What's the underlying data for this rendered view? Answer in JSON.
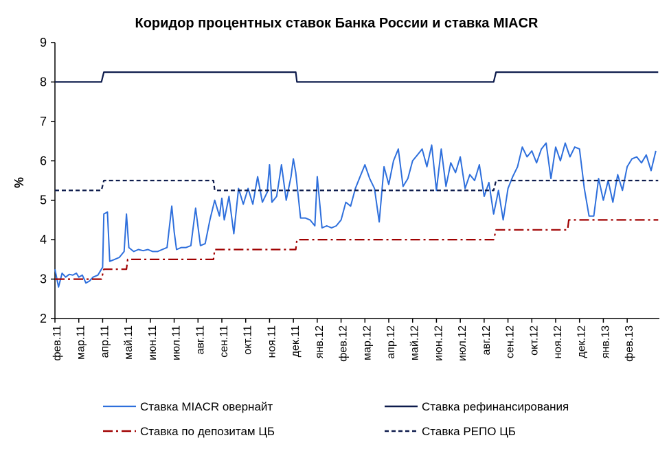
{
  "chart_data": {
    "type": "line",
    "title": "Коридор процентных ставок Банка России и ставка MIACR",
    "xlabel": "",
    "ylabel": "%",
    "ylim": [
      2,
      9
    ],
    "yticks": [
      "2",
      "3",
      "4",
      "5",
      "6",
      "7",
      "8",
      "9"
    ],
    "categories": [
      "фев.11",
      "мар.11",
      "апр.11",
      "май.11",
      "июн.11",
      "июл.11",
      "авг.11",
      "сен.11",
      "окт.11",
      "ноя.11",
      "дек.11",
      "янв.12",
      "фев.12",
      "мар.12",
      "апр.12",
      "май.12",
      "июн.12",
      "июл.12",
      "авг.12",
      "сен.12",
      "окт.12",
      "ноя.12",
      "дек.12",
      "янв.13",
      "фев.13"
    ],
    "grid": false,
    "legend_position": "bottom",
    "colors": {
      "miacr": "#2e6fdc",
      "refinancing": "#0d1b4c",
      "deposit": "#a00000",
      "repo": "#0d1b4c"
    },
    "series": [
      {
        "name": "Ставка MIACR овернайт",
        "key": "miacr",
        "style": "solid",
        "x": [
          0,
          0.15,
          0.3,
          0.45,
          0.6,
          0.75,
          0.9,
          1.0,
          1.15,
          1.3,
          1.45,
          1.6,
          1.8,
          2.0,
          2.05,
          2.2,
          2.3,
          2.5,
          2.7,
          2.9,
          3.0,
          3.1,
          3.3,
          3.5,
          3.7,
          3.9,
          4.1,
          4.3,
          4.5,
          4.7,
          4.9,
          5.0,
          5.1,
          5.3,
          5.5,
          5.7,
          5.9,
          6.1,
          6.3,
          6.5,
          6.7,
          6.9,
          7.0,
          7.1,
          7.3,
          7.5,
          7.7,
          7.9,
          8.1,
          8.3,
          8.5,
          8.7,
          8.9,
          9.0,
          9.1,
          9.3,
          9.5,
          9.7,
          9.9,
          10.0,
          10.1,
          10.3,
          10.5,
          10.7,
          10.9,
          11.0,
          11.2,
          11.4,
          11.6,
          11.8,
          12.0,
          12.2,
          12.4,
          12.6,
          12.8,
          13.0,
          13.2,
          13.4,
          13.6,
          13.8,
          14.0,
          14.2,
          14.4,
          14.6,
          14.8,
          15.0,
          15.2,
          15.4,
          15.6,
          15.8,
          16.0,
          16.2,
          16.4,
          16.6,
          16.8,
          17.0,
          17.2,
          17.4,
          17.6,
          17.8,
          18.0,
          18.2,
          18.4,
          18.6,
          18.8,
          19.0,
          19.2,
          19.4,
          19.6,
          19.8,
          20.0,
          20.2,
          20.4,
          20.6,
          20.8,
          21.0,
          21.2,
          21.4,
          21.6,
          21.8,
          22.0,
          22.2,
          22.4,
          22.6,
          22.8,
          23.0,
          23.2,
          23.4,
          23.6,
          23.8,
          24.0,
          24.2,
          24.4,
          24.6,
          24.8,
          25.0,
          25.2
        ],
        "values": [
          3.25,
          2.8,
          3.15,
          3.05,
          3.12,
          3.1,
          3.15,
          3.05,
          3.1,
          2.9,
          2.95,
          3.05,
          3.1,
          3.3,
          4.65,
          4.7,
          3.45,
          3.5,
          3.55,
          3.7,
          4.65,
          3.8,
          3.7,
          3.75,
          3.72,
          3.75,
          3.7,
          3.7,
          3.75,
          3.8,
          4.85,
          4.2,
          3.75,
          3.8,
          3.8,
          3.85,
          4.8,
          3.85,
          3.9,
          4.5,
          5.0,
          4.6,
          5.05,
          4.5,
          5.1,
          4.15,
          5.3,
          4.9,
          5.3,
          4.9,
          5.6,
          4.95,
          5.2,
          5.9,
          4.95,
          5.1,
          5.9,
          5.0,
          5.6,
          6.05,
          5.7,
          4.55,
          4.55,
          4.5,
          4.35,
          5.6,
          4.3,
          4.35,
          4.3,
          4.35,
          4.5,
          4.95,
          4.85,
          5.3,
          5.6,
          5.9,
          5.55,
          5.3,
          4.45,
          5.85,
          5.4,
          6.0,
          6.3,
          5.35,
          5.55,
          6.0,
          6.15,
          6.3,
          5.85,
          6.4,
          5.25,
          6.3,
          5.35,
          5.95,
          5.7,
          6.1,
          5.3,
          5.65,
          5.5,
          5.9,
          5.1,
          5.45,
          4.65,
          5.25,
          4.5,
          5.3,
          5.6,
          5.85,
          6.35,
          6.1,
          6.25,
          5.95,
          6.3,
          6.45,
          5.55,
          6.35,
          6.0,
          6.45,
          6.1,
          6.35,
          6.3,
          5.3,
          4.6,
          4.6,
          5.55,
          5.0,
          5.5,
          4.95,
          5.65,
          5.25,
          5.85,
          6.05,
          6.1,
          5.95,
          6.15,
          5.75,
          6.25
        ]
      },
      {
        "name": "Ставка рефинансирования",
        "key": "refinancing",
        "style": "solid",
        "x": [
          0,
          1.95,
          2.05,
          10.1,
          10.15,
          18.4,
          18.5,
          25.3
        ],
        "values": [
          8.0,
          8.0,
          8.25,
          8.25,
          8.0,
          8.0,
          8.25,
          8.25
        ]
      },
      {
        "name": "Ставка по депозитам ЦБ",
        "key": "deposit",
        "style": "dash-dot",
        "x": [
          0,
          1.95,
          2.05,
          3.0,
          3.05,
          6.65,
          6.7,
          10.1,
          10.15,
          18.4,
          18.5,
          21.5,
          21.55,
          25.3
        ],
        "values": [
          3.0,
          3.0,
          3.25,
          3.25,
          3.5,
          3.5,
          3.75,
          3.75,
          4.0,
          4.0,
          4.25,
          4.25,
          4.5,
          4.5
        ]
      },
      {
        "name": "Ставка РЕПО ЦБ",
        "key": "repo",
        "style": "dashed",
        "x": [
          0,
          1.95,
          2.05,
          6.65,
          6.7,
          18.4,
          18.5,
          25.3
        ],
        "values": [
          5.25,
          5.25,
          5.5,
          5.5,
          5.25,
          5.25,
          5.5,
          5.5
        ]
      }
    ]
  }
}
